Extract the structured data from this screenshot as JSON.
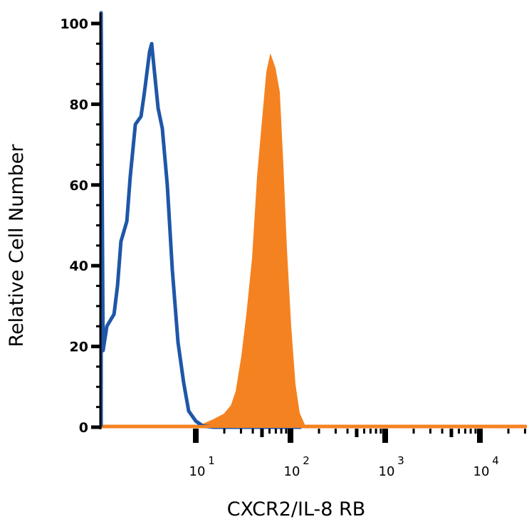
{
  "chart_data": {
    "type": "area",
    "title": "",
    "xlabel": "CXCR2/IL-8 RB",
    "ylabel": "Relative Cell Number",
    "x_scale": "log",
    "xlim": [
      1,
      33000
    ],
    "ylim": [
      0,
      100
    ],
    "grid": false,
    "y_ticks": [
      0,
      20,
      40,
      60,
      80,
      100
    ],
    "y_tick_labels": [
      "0",
      "20",
      "40",
      "60",
      "80",
      "100"
    ],
    "x_ticks": [
      10,
      100,
      1000,
      10000
    ],
    "x_tick_labels": [
      {
        "base": "10",
        "exp": "1"
      },
      {
        "base": "10",
        "exp": "2"
      },
      {
        "base": "10",
        "exp": "3"
      },
      {
        "base": "10",
        "exp": "4"
      }
    ],
    "colors": {
      "control": "#1f56a8",
      "stained": "#f58220",
      "axis": "#000000"
    },
    "series": [
      {
        "style": "outline",
        "color": "#1f56a8",
        "x": [
          1.0,
          1.0,
          1.05,
          1.15,
          1.37,
          1.49,
          1.62,
          1.87,
          2.03,
          2.3,
          2.64,
          2.87,
          3.25,
          3.42,
          3.66,
          4.0,
          4.43,
          5.0,
          5.65,
          6.49,
          7.45,
          8.41,
          10,
          11.9,
          15.4,
          40,
          130
        ],
        "y": [
          0,
          105,
          19,
          25,
          28,
          35,
          46,
          51,
          62,
          75,
          77,
          83,
          93,
          95,
          88,
          79,
          74,
          60,
          39,
          21,
          11,
          4,
          1.5,
          0.3,
          0,
          0,
          0
        ]
      },
      {
        "style": "filled",
        "color": "#f58220",
        "x": [
          1.0,
          10.9,
          15.4,
          20.0,
          23.8,
          26.8,
          30.8,
          34.8,
          40.0,
          45.1,
          50.0,
          56.5,
          61.5,
          68.3,
          75.8,
          82.7,
          90.2,
          100,
          111,
          123,
          141,
          174,
          33000
        ],
        "y": [
          0,
          0.3,
          1.8,
          3.2,
          5.3,
          8.8,
          17.6,
          28,
          42,
          62,
          74,
          88,
          92,
          89,
          83,
          65,
          44,
          25,
          10.6,
          3.5,
          0.3,
          0,
          0
        ]
      }
    ]
  }
}
